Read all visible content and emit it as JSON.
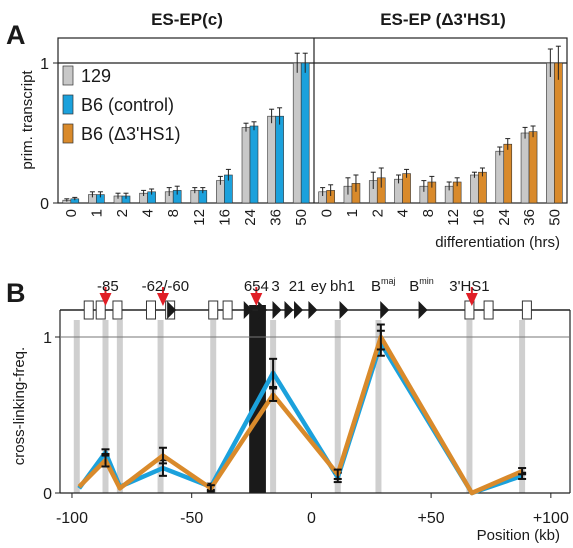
{
  "colors": {
    "gray": "#c8c8c8",
    "blue": "#1ba1dc",
    "orange": "#d98a2b",
    "axis": "#222222",
    "ref_line": "#444444",
    "black_box": "#1a1a1a",
    "red_marker": "#e01e26",
    "stripe": "#cfcfcf"
  },
  "panel_letters": {
    "a": "A",
    "b": "B"
  },
  "chart_data": [
    {
      "type": "bar",
      "panel": "A",
      "ylabel": "prim. transcript",
      "xlabel": "differentiation (hrs)",
      "ylim": [
        0,
        1.05
      ],
      "yticks": [
        "0",
        "1"
      ],
      "legend_position": "top-left of left subplot",
      "legend": [
        {
          "label": "129",
          "color_key": "gray"
        },
        {
          "label": "B6 (control)",
          "color_key": "blue"
        },
        {
          "label": "B6 (Δ3'HS1)",
          "color_key": "orange"
        }
      ],
      "subplots": [
        {
          "title": "ES-EP(c)",
          "categories": [
            "0",
            "1",
            "2",
            "4",
            "8",
            "12",
            "16",
            "24",
            "36",
            "50"
          ],
          "series": [
            {
              "name": "129",
              "color_key": "gray",
              "values": [
                0.02,
                0.06,
                0.05,
                0.07,
                0.08,
                0.09,
                0.16,
                0.54,
                0.62,
                1.0
              ],
              "errors": [
                0.01,
                0.02,
                0.02,
                0.02,
                0.03,
                0.02,
                0.03,
                0.03,
                0.05,
                0.07
              ]
            },
            {
              "name": "B6 (control)",
              "color_key": "blue",
              "values": [
                0.03,
                0.06,
                0.05,
                0.08,
                0.09,
                0.09,
                0.2,
                0.55,
                0.62,
                1.0
              ],
              "errors": [
                0.01,
                0.02,
                0.02,
                0.02,
                0.03,
                0.02,
                0.04,
                0.03,
                0.06,
                0.07
              ]
            }
          ]
        },
        {
          "title": "ES-EP (Δ3'HS1)",
          "categories": [
            "0",
            "1",
            "2",
            "4",
            "8",
            "12",
            "16",
            "24",
            "36",
            "50"
          ],
          "series": [
            {
              "name": "129",
              "color_key": "gray",
              "values": [
                0.08,
                0.12,
                0.16,
                0.17,
                0.12,
                0.12,
                0.2,
                0.37,
                0.5,
                1.0
              ],
              "errors": [
                0.03,
                0.06,
                0.06,
                0.03,
                0.04,
                0.03,
                0.02,
                0.03,
                0.04,
                0.1
              ]
            },
            {
              "name": "B6 (Δ3'HS1)",
              "color_key": "orange",
              "values": [
                0.09,
                0.14,
                0.18,
                0.21,
                0.15,
                0.15,
                0.22,
                0.42,
                0.51,
                1.0
              ],
              "errors": [
                0.04,
                0.06,
                0.07,
                0.03,
                0.04,
                0.03,
                0.03,
                0.04,
                0.04,
                0.12
              ]
            }
          ]
        }
      ]
    },
    {
      "type": "line",
      "panel": "B",
      "ylabel": "cross-linking-freq.",
      "xlabel": "Position (kb)",
      "xlim": [
        -105,
        108
      ],
      "ylim": [
        0,
        1.0
      ],
      "xticks": [
        -100,
        -50,
        0,
        50,
        100
      ],
      "xtick_labels": [
        "-100",
        "-50",
        "0",
        "+50",
        "+100"
      ],
      "yticks": [
        0,
        1
      ],
      "ytick_labels": [
        "0",
        "1"
      ],
      "reference_line_y": 1.0,
      "anchor_region": [
        -26,
        -19
      ],
      "series": [
        {
          "color_key": "blue",
          "x": [
            -97,
            -86,
            -80,
            -62,
            -42,
            -16,
            11,
            29,
            67,
            88
          ],
          "y": [
            0.03,
            0.26,
            0.04,
            0.16,
            0.04,
            0.77,
            0.1,
            0.96,
            0.0,
            0.11
          ],
          "errors": [
            0.0,
            0.02,
            0.0,
            0.05,
            0.02,
            0.09,
            0.03,
            0.08,
            0.0,
            0.02
          ]
        },
        {
          "color_key": "orange",
          "x": [
            -97,
            -86,
            -80,
            -62,
            -42,
            -16,
            11,
            29,
            67,
            88
          ],
          "y": [
            0.04,
            0.21,
            0.03,
            0.24,
            0.03,
            0.63,
            0.12,
            1.0,
            0.0,
            0.14
          ],
          "errors": [
            0.0,
            0.04,
            0.0,
            0.05,
            0.02,
            0.04,
            0.03,
            0.08,
            0.0,
            0.02
          ]
        }
      ],
      "gene_map": {
        "labels": [
          {
            "text": "-85",
            "x": -85
          },
          {
            "text": "-62/-60",
            "x": -61
          },
          {
            "text": "654",
            "x": -23
          },
          {
            "text": "3",
            "x": -15
          },
          {
            "text": "21",
            "x": -6
          },
          {
            "text": "ey",
            "x": 3
          },
          {
            "text": "bh1",
            "x": 13
          },
          {
            "text": "B",
            "sup": "maj",
            "x": 30
          },
          {
            "text": "B",
            "sup": "min",
            "x": 46
          },
          {
            "text": "3'HS1",
            "x": 66
          }
        ],
        "red_markers_x": [
          -86,
          -62,
          -23,
          67
        ],
        "black_triangles_x": [
          -59,
          -27,
          -21,
          -15,
          -10,
          -6,
          0,
          13,
          30,
          46
        ],
        "white_boxes_x": [
          -93,
          -88,
          -81,
          -67,
          -59,
          -41,
          -35,
          66,
          74,
          90
        ]
      },
      "gray_stripes_x": [
        -98,
        -86,
        -80,
        -63,
        -41,
        -16,
        11,
        28,
        66,
        88
      ]
    }
  ]
}
